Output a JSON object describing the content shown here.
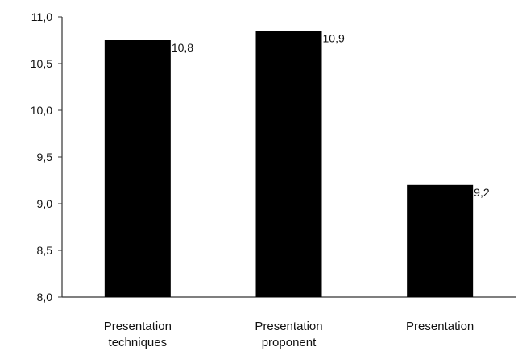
{
  "chart_data": {
    "type": "bar",
    "categories": [
      [
        "Presentation",
        "techniques"
      ],
      [
        "Presentation",
        "proponent"
      ],
      [
        "Presentation"
      ]
    ],
    "values": [
      10.75,
      10.85,
      9.2
    ],
    "data_labels": [
      "10,8",
      "10,9",
      "9,2"
    ],
    "ylim": [
      8.0,
      11.0
    ],
    "yticks": [
      8.0,
      8.5,
      9.0,
      9.5,
      10.0,
      10.5,
      11.0
    ],
    "ytick_labels": [
      "8,0",
      "8,5",
      "9,0",
      "9,5",
      "10,0",
      "10,5",
      "11,0"
    ],
    "title": "",
    "xlabel": "",
    "ylabel": "",
    "grid": false,
    "legend": false,
    "bar_color": "#000000"
  }
}
